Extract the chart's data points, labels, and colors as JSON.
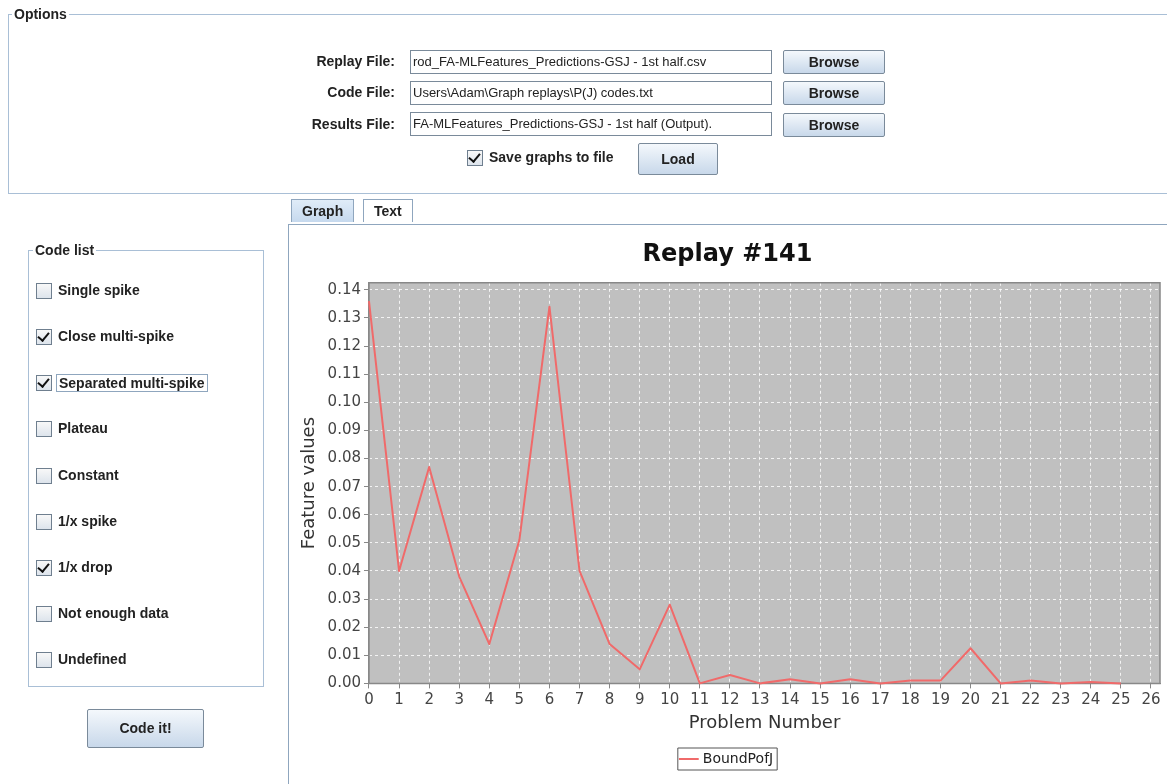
{
  "chart_data": {
    "type": "line",
    "title": "Replay #141",
    "xlabel": "Problem Number",
    "ylabel": "Feature values",
    "x": [
      0,
      1,
      2,
      3,
      4,
      5,
      6,
      7,
      8,
      9,
      10,
      11,
      12,
      13,
      14,
      15,
      16,
      17,
      18,
      19,
      20,
      21,
      22,
      23,
      24,
      25
    ],
    "series": [
      {
        "name": "BoundPofJ",
        "color": "#f06a6a",
        "values": [
          0.136,
          0.04,
          0.077,
          0.038,
          0.014,
          0.051,
          0.134,
          0.04,
          0.014,
          0.005,
          0.028,
          0.0,
          0.003,
          0.0,
          0.0015,
          0.0,
          0.0015,
          0.0,
          0.001,
          0.001,
          0.0125,
          0.0,
          0.001,
          0.0,
          0.0005,
          0.0
        ]
      }
    ],
    "xlim": [
      0,
      26.3
    ],
    "xticks": [
      0,
      1,
      2,
      3,
      4,
      5,
      6,
      7,
      8,
      9,
      10,
      11,
      12,
      13,
      14,
      15,
      16,
      17,
      18,
      19,
      20,
      21,
      22,
      23,
      24,
      25,
      26
    ],
    "ylim": [
      0,
      0.1425
    ],
    "yticks": [
      {
        "value": 0,
        "label": "0.00"
      },
      {
        "value": 0.01,
        "label": "0.01"
      },
      {
        "value": 0.02,
        "label": "0.02"
      },
      {
        "value": 0.03,
        "label": "0.03"
      },
      {
        "value": 0.04,
        "label": "0.04"
      },
      {
        "value": 0.05,
        "label": "0.05"
      },
      {
        "value": 0.06,
        "label": "0.06"
      },
      {
        "value": 0.07,
        "label": "0.07"
      },
      {
        "value": 0.08,
        "label": "0.08"
      },
      {
        "value": 0.09,
        "label": "0.09"
      },
      {
        "value": 0.1,
        "label": "0.10"
      },
      {
        "value": 0.11,
        "label": "0.11"
      },
      {
        "value": 0.12,
        "label": "0.12"
      },
      {
        "value": 0.13,
        "label": "0.13"
      },
      {
        "value": 0.14,
        "label": "0.14"
      }
    ],
    "grid": true,
    "legend": "bottom",
    "marker": "none",
    "line_style": "solid",
    "annotations": [
      "Options",
      "Replay File:",
      "rod_FA-MLFeatures_Predictions-GSJ - 1st half.csv",
      "Browse",
      "Code File:",
      "Users\\Adam\\Graph replays\\P(J) codes.txt",
      "Browse",
      "Results File:",
      "FA-MLFeatures_Predictions-GSJ - 1st half (Output).",
      "Browse",
      "Save graphs to file",
      "Load",
      "Graph",
      "Text",
      "Code list",
      "Single spike",
      "Close multi-spike",
      "Separated multi-spike",
      "Plateau",
      "Constant",
      "1/x spike",
      "1/x drop",
      "Not enough data",
      "Undefined",
      "Code it!"
    ]
  }
}
